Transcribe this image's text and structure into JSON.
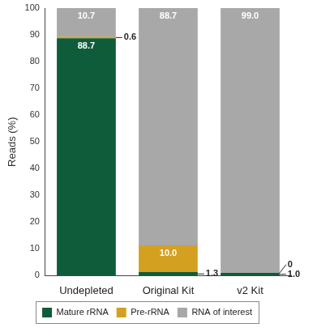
{
  "chart_data": {
    "type": "bar",
    "stacked": true,
    "categories": [
      "Undepleted",
      "Original Kit",
      "v2 Kit"
    ],
    "ylabel": "Reads (%)",
    "ylim": [
      0,
      100
    ],
    "yticks": [
      0,
      10,
      20,
      30,
      40,
      50,
      60,
      70,
      80,
      90,
      100
    ],
    "grid": false,
    "legend": "bottom",
    "data_labels": true,
    "series": [
      {
        "name": "Mature rRNA",
        "color": "#0f5c3a",
        "values": [
          88.7,
          1.3,
          1.0
        ],
        "value_labels": [
          "88.7",
          "1.3",
          "1.0"
        ]
      },
      {
        "name": "Pre-rRNA",
        "color": "#d4a020",
        "values": [
          0.6,
          10.0,
          0
        ],
        "value_labels": [
          "0.6",
          "10.0",
          "0"
        ]
      },
      {
        "name": "RNA of interest",
        "color": "#a8a8a8",
        "values": [
          10.7,
          88.7,
          99.0
        ],
        "value_labels": [
          "10.7",
          "88.7",
          "99.0"
        ]
      }
    ]
  }
}
